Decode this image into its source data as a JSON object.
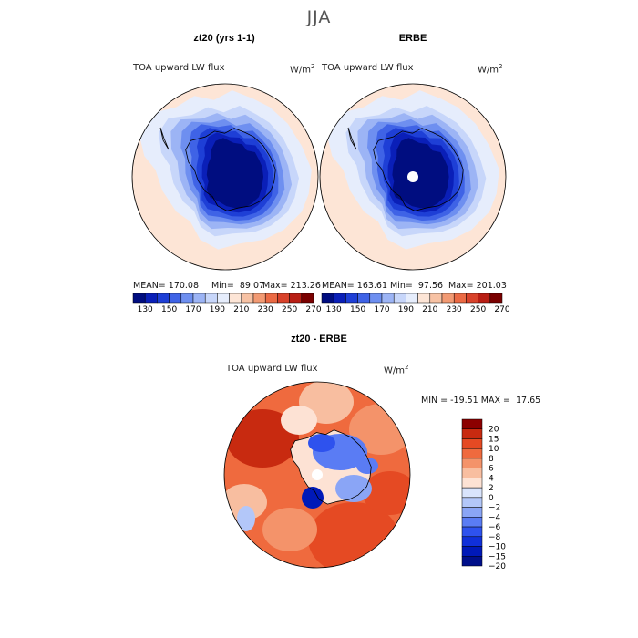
{
  "figure_title": "JJA",
  "panels": [
    {
      "title": "zt20 (yrs 1-1)",
      "field": "TOA upward LW flux",
      "units": "W/m",
      "units_exp": "2",
      "mean": "MEAN= 170.08",
      "min": "Min=  89.07",
      "max": "Max= 213.26"
    },
    {
      "title": "ERBE",
      "field": "TOA upward LW flux",
      "units": "W/m",
      "units_exp": "2",
      "mean": "MEAN= 163.61",
      "min": "Min=  97.56",
      "max": "Max= 201.03"
    },
    {
      "title": "zt20 - ERBE",
      "field": "TOA upward LW flux",
      "units": "W/m",
      "units_exp": "2",
      "stats": "MIN = -19.51 MAX =  17.65"
    }
  ],
  "colors": {
    "abs_scale": [
      "#000d80",
      "#0a1fb8",
      "#1e3fd6",
      "#3f63e6",
      "#6e8ff0",
      "#9cb4f5",
      "#c7d6fa",
      "#e6edfc",
      "#fde5d6",
      "#f7c2a4",
      "#f29a73",
      "#eb6a44",
      "#d8422a",
      "#b81e14",
      "#7a0000"
    ],
    "diff_scale": [
      "#000f8a",
      "#0019b8",
      "#1030d9",
      "#2e52ee",
      "#5a7cf4",
      "#8aa5f6",
      "#b3c7f9",
      "#d9e4fc",
      "#fde2d4",
      "#f8bea0",
      "#f4936a",
      "#ef6a3e",
      "#e54a23",
      "#c82a10",
      "#8c0000"
    ]
  },
  "chart_data": [
    {
      "type": "heatmap",
      "projection": "south-polar-stereographic",
      "title": "zt20 (yrs 1-1)",
      "field": "TOA upward LW flux",
      "units": "W/m2",
      "colorbar_levels": [
        130,
        150,
        170,
        190,
        210,
        230,
        250,
        270
      ],
      "stats": {
        "mean": 170.08,
        "min": 89.07,
        "max": 213.26
      }
    },
    {
      "type": "heatmap",
      "projection": "south-polar-stereographic",
      "title": "ERBE",
      "field": "TOA upward LW flux",
      "units": "W/m2",
      "colorbar_levels": [
        130,
        150,
        170,
        190,
        210,
        230,
        250,
        270
      ],
      "stats": {
        "mean": 163.61,
        "min": 97.56,
        "max": 201.03
      }
    },
    {
      "type": "heatmap",
      "projection": "south-polar-stereographic",
      "title": "zt20 - ERBE",
      "field": "TOA upward LW flux",
      "units": "W/m2",
      "colorbar_levels": [
        20,
        15,
        10,
        8,
        6,
        4,
        2,
        0,
        -2,
        -4,
        -6,
        -8,
        -10,
        -15,
        -20
      ],
      "stats": {
        "min": -19.51,
        "max": 17.65
      }
    }
  ]
}
